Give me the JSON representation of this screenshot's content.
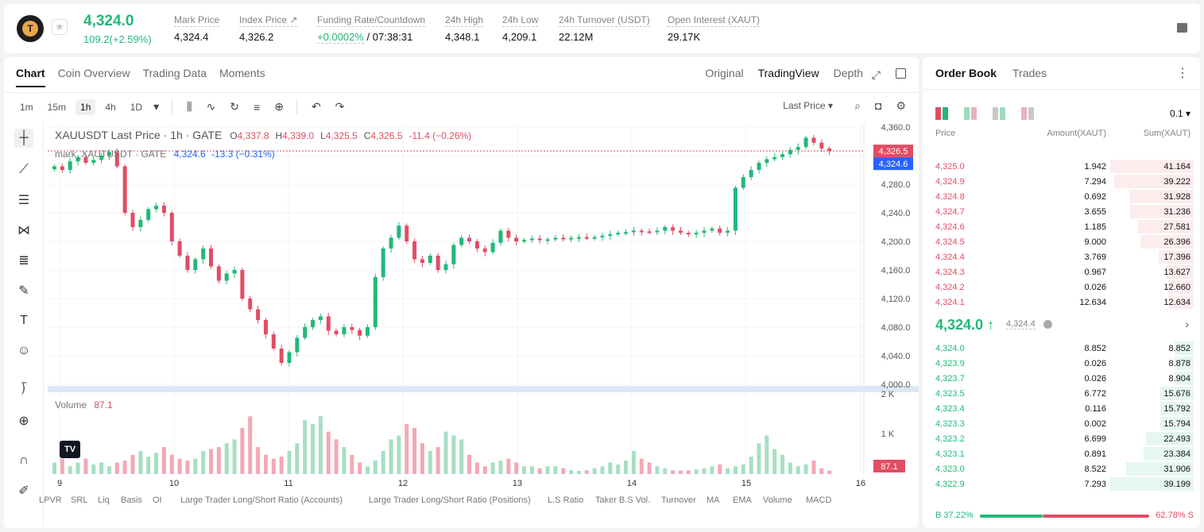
{
  "header": {
    "logo_letter": "T",
    "price": "4,324.0",
    "change": "109.2(+2.59%)",
    "stats": [
      {
        "label": "Mark Price",
        "value": "4,324.4"
      },
      {
        "label": "Index Price ↗",
        "value": "4,326.2"
      },
      {
        "label": "Funding Rate/Countdown",
        "value_green": "+0.0002%",
        "value": " / 07:38:31"
      },
      {
        "label": "24h High",
        "value": "4,348.1"
      },
      {
        "label": "24h Low",
        "value": "4,209.1"
      },
      {
        "label": "24h Turnover (USDT)",
        "value": "22.12M"
      },
      {
        "label": "Open Interest (XAUT)",
        "value": "29.17K"
      }
    ]
  },
  "chart_panel": {
    "tabs": [
      "Chart",
      "Coin Overview",
      "Trading Data",
      "Moments"
    ],
    "views": [
      "Original",
      "TradingView",
      "Depth"
    ],
    "timeframes": [
      "1m",
      "15m",
      "1h",
      "4h",
      "1D"
    ],
    "price_type": "Last Price ▾",
    "legend": {
      "symbol": "XAUUSDT Last Price · 1h · GATE",
      "o_label": "O",
      "o": "4,337.8",
      "h_label": "H",
      "h": "4,339.0",
      "l_label": "L",
      "l": "4,325.5",
      "c_label": "C",
      "c": "4,326.5",
      "chg": "-11.4 (−0.26%)",
      "mark": "mark_XAUTUSDT · GATE",
      "mark_value": "4,324.6",
      "mark_chg": "-13.3 (−0.31%)"
    },
    "volume_label": "Volume",
    "volume_value": "87.1",
    "tv_logo": "TV",
    "indicators": [
      "LPVR",
      "SRL",
      "Liq",
      "Basis",
      "OI",
      "Large Trader Long/Short Ratio (Accounts)",
      "Large Trader Long/Short Ratio (Positions)",
      "L.S Ratio",
      "Taker B.S Vol.",
      "Turnover",
      "MA",
      "EMA",
      "Volume",
      "MACD"
    ]
  },
  "chart_data": {
    "type": "candlestick",
    "title": "XAUUSDT Last Price · 1h · GATE",
    "y_axis_ticks": [
      "4,360.0",
      "4,320.0",
      "4,280.0",
      "4,240.0",
      "4,200.0",
      "4,160.0",
      "4,120.0",
      "4,080.0",
      "4,040.0",
      "4,000.0"
    ],
    "ylim": [
      4000,
      4360
    ],
    "x_axis_ticks": [
      "9",
      "10",
      "11",
      "12",
      "13",
      "14",
      "15",
      "16"
    ],
    "last_price_label": "4,326.5",
    "mark_price_label": "4,324.6",
    "volume_axis_ticks": [
      "2 K",
      "1 K"
    ],
    "volume_last_label": "87.1",
    "close_path": [
      4305,
      4300,
      4312,
      4318,
      4310,
      4314,
      4320,
      4325,
      4305,
      4240,
      4220,
      4230,
      4245,
      4250,
      4240,
      4200,
      4180,
      4160,
      4175,
      4190,
      4165,
      4145,
      4155,
      4160,
      4120,
      4105,
      4090,
      4070,
      4050,
      4030,
      4045,
      4065,
      4080,
      4090,
      4095,
      4075,
      4070,
      4080,
      4076,
      4068,
      4080,
      4150,
      4190,
      4205,
      4222,
      4200,
      4175,
      4170,
      4180,
      4160,
      4168,
      4195,
      4205,
      4200,
      4190,
      4185,
      4198,
      4215,
      4205,
      4200,
      4202,
      4204,
      4202,
      4203,
      4205,
      4204,
      4205,
      4206,
      4205,
      4206,
      4208,
      4210,
      4212,
      4213,
      4215,
      4214,
      4213,
      4215,
      4220,
      4215,
      4212,
      4210,
      4212,
      4215,
      4218,
      4212,
      4215,
      4275,
      4290,
      4300,
      4310,
      4315,
      4318,
      4322,
      4328,
      4332,
      4345,
      4338,
      4330,
      4326.5
    ],
    "volume_path": [
      300,
      400,
      200,
      300,
      400,
      250,
      300,
      200,
      300,
      350,
      500,
      600,
      450,
      550,
      700,
      500,
      400,
      350,
      400,
      600,
      650,
      700,
      800,
      900,
      1200,
      1500,
      700,
      500,
      400,
      450,
      600,
      800,
      1400,
      1300,
      1500,
      1100,
      900,
      700,
      500,
      300,
      200,
      350,
      600,
      900,
      1000,
      1300,
      1200,
      800,
      600,
      700,
      1100,
      1000,
      900,
      500,
      300,
      200,
      300,
      350,
      400,
      300,
      200,
      200,
      150,
      200,
      200,
      150,
      100,
      80,
      100,
      150,
      200,
      300,
      250,
      350,
      600,
      400,
      300,
      200,
      150,
      100,
      90,
      100,
      120,
      150,
      200,
      250,
      150,
      200,
      250,
      450,
      800,
      1000,
      650,
      500,
      300,
      200,
      250,
      350,
      150,
      87
    ]
  },
  "order_book": {
    "tabs": [
      "Order Book",
      "Trades"
    ],
    "precision": "0.1 ▾",
    "headers": {
      "price": "Price",
      "amount": "Amount(XAUT)",
      "sum": "Sum(XAUT)"
    },
    "asks": [
      {
        "price": "4,325.0",
        "amount": "1.942",
        "sum": "41.164",
        "depth": 1.0
      },
      {
        "price": "4,324.9",
        "amount": "7.294",
        "sum": "39.222",
        "depth": 0.953
      },
      {
        "price": "4,324.8",
        "amount": "0.692",
        "sum": "31.928",
        "depth": 0.776
      },
      {
        "price": "4,324.7",
        "amount": "3.655",
        "sum": "31.236",
        "depth": 0.759
      },
      {
        "price": "4,324.6",
        "amount": "1.185",
        "sum": "27.581",
        "depth": 0.67
      },
      {
        "price": "4,324.5",
        "amount": "9.000",
        "sum": "26.396",
        "depth": 0.641
      },
      {
        "price": "4,324.4",
        "amount": "3.769",
        "sum": "17.396",
        "depth": 0.423
      },
      {
        "price": "4,324.3",
        "amount": "0.967",
        "sum": "13.627",
        "depth": 0.331
      },
      {
        "price": "4,324.2",
        "amount": "0.026",
        "sum": "12.660",
        "depth": 0.308
      },
      {
        "price": "4,324.1",
        "amount": "12.634",
        "sum": "12.634",
        "depth": 0.307
      }
    ],
    "mid_price": "4,324.0 ↑",
    "mid_mark": "4,324.4",
    "bids": [
      {
        "price": "4,324.0",
        "amount": "8.852",
        "sum": "8.852",
        "depth": 0.226
      },
      {
        "price": "4,323.9",
        "amount": "0.026",
        "sum": "8.878",
        "depth": 0.227
      },
      {
        "price": "4,323.7",
        "amount": "0.026",
        "sum": "8.904",
        "depth": 0.227
      },
      {
        "price": "4,323.5",
        "amount": "6.772",
        "sum": "15.676",
        "depth": 0.4
      },
      {
        "price": "4,323.4",
        "amount": "0.116",
        "sum": "15.792",
        "depth": 0.403
      },
      {
        "price": "4,323.3",
        "amount": "0.002",
        "sum": "15.794",
        "depth": 0.403
      },
      {
        "price": "4,323.2",
        "amount": "6.699",
        "sum": "22.493",
        "depth": 0.574
      },
      {
        "price": "4,323.1",
        "amount": "0.891",
        "sum": "23.384",
        "depth": 0.597
      },
      {
        "price": "4,323.0",
        "amount": "8.522",
        "sum": "31.906",
        "depth": 0.814
      },
      {
        "price": "4,322.9",
        "amount": "7.293",
        "sum": "39.199",
        "depth": 1.0
      }
    ],
    "buy_ratio_label": "B 37.22%",
    "sell_ratio_label": "62.78% S",
    "buy_ratio": 0.3722
  },
  "colors": {
    "up": "#21b87a",
    "down": "#e14d63",
    "mark": "#2962ff"
  }
}
